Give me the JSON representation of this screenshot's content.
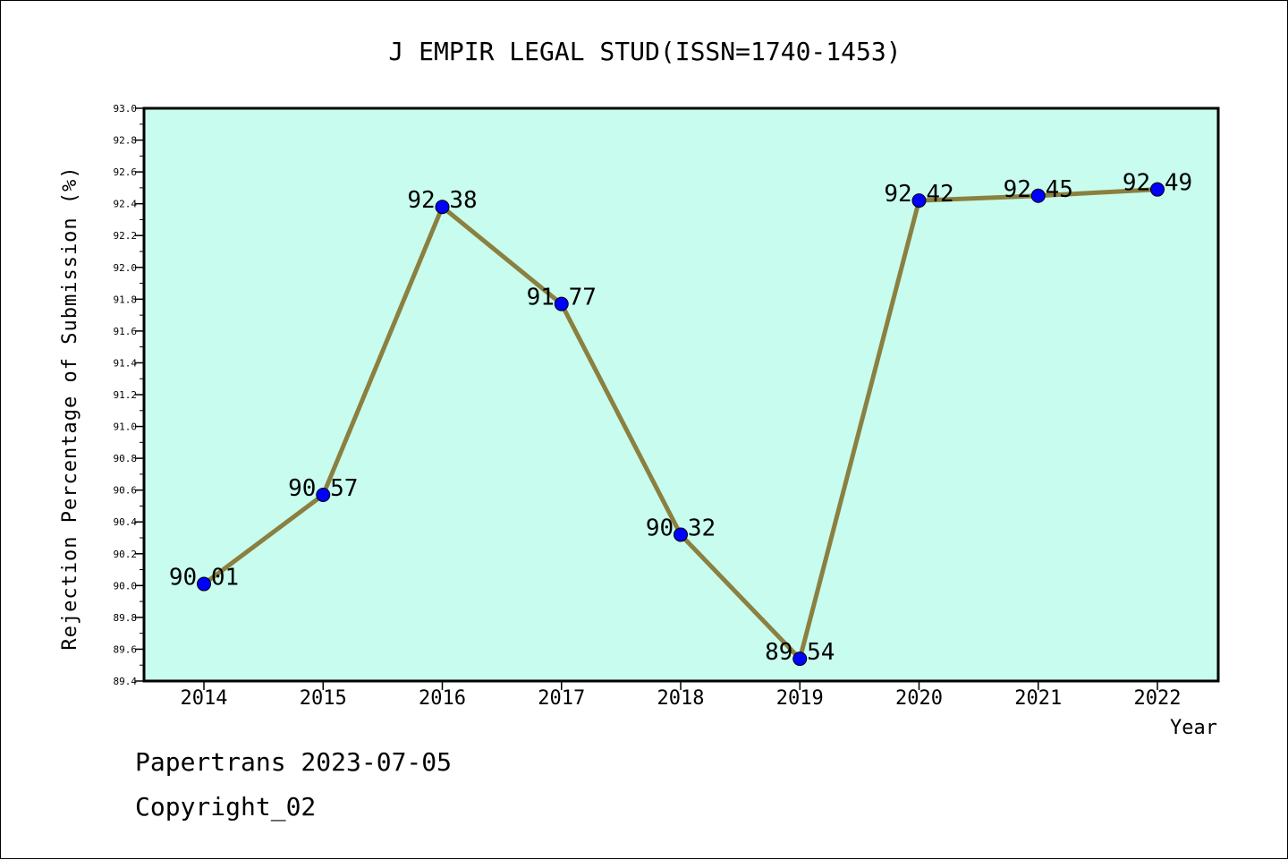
{
  "chart_data": {
    "type": "line",
    "title": "J EMPIR LEGAL STUD(ISSN=1740-1453)",
    "xlabel": "Year",
    "ylabel": "Rejection Percentage of Submission (%)",
    "categories": [
      "2014",
      "2015",
      "2016",
      "2017",
      "2018",
      "2019",
      "2020",
      "2021",
      "2022"
    ],
    "values": [
      90.01,
      90.57,
      92.38,
      91.77,
      90.32,
      89.54,
      92.42,
      92.45,
      92.49
    ],
    "value_labels": [
      "90.01",
      "90.57",
      "92.38",
      "91.77",
      "90.32",
      "89.54",
      "92.42",
      "92.45",
      "92.49"
    ],
    "ylim": [
      89.4,
      93.0
    ],
    "yticks": [
      "89.4",
      "89.6",
      "89.8",
      "90.0",
      "90.2",
      "90.4",
      "90.6",
      "90.8",
      "91.0",
      "91.2",
      "91.4",
      "91.6",
      "91.8",
      "92.0",
      "92.2",
      "92.4",
      "92.6",
      "92.8",
      "93.0"
    ],
    "grid": false,
    "colors": {
      "plot_background": "#c8fcee",
      "line": "#8b8040",
      "marker": "#0000ff"
    }
  },
  "footer": {
    "line1": "Papertrans 2023-07-05",
    "line2": "Copyright_02"
  }
}
